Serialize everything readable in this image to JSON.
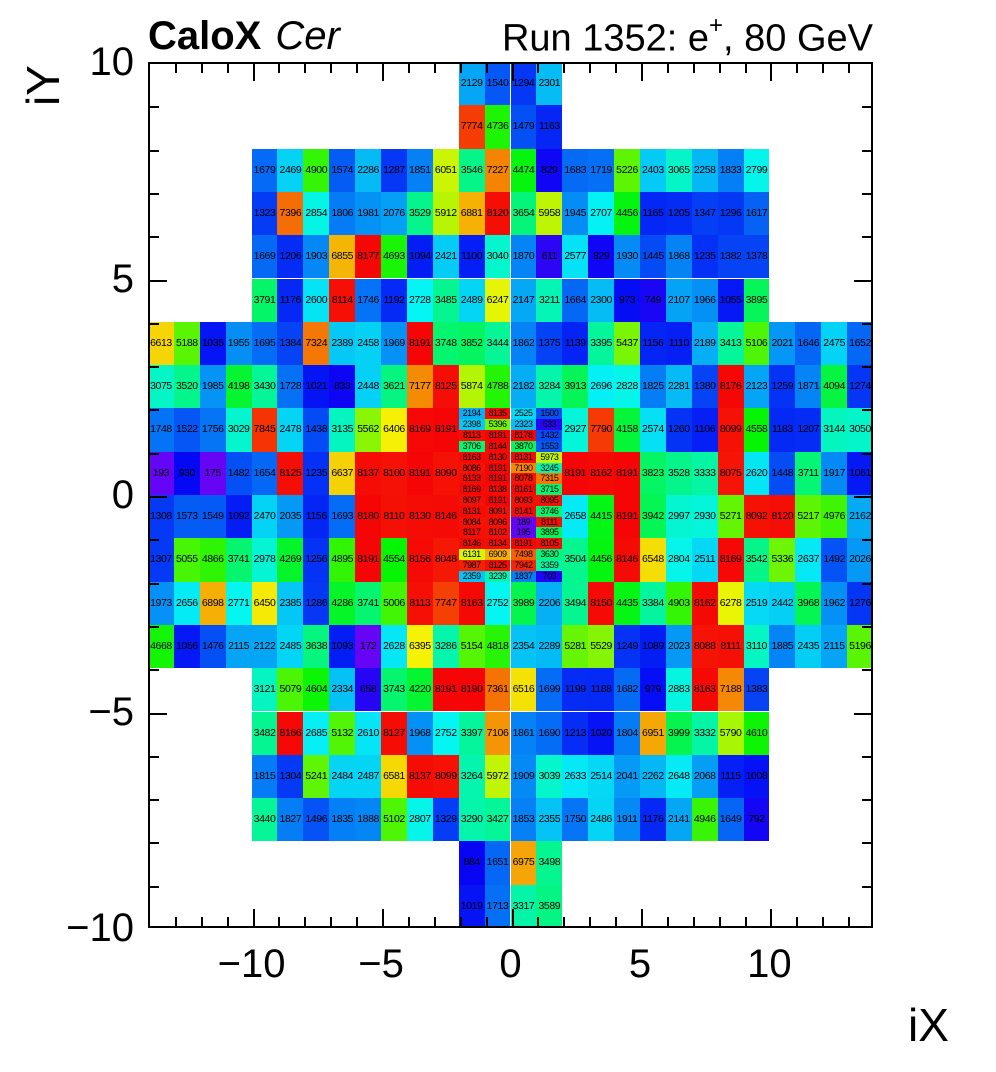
{
  "chart_data": {
    "type": "heatmap",
    "title_left_bold": "CaloX",
    "title_left_italic": "Cer",
    "title_right_prefix": "Run 1352: e",
    "title_right_sup": "+",
    "title_right_suffix": ", 80 GeV",
    "xlabel": "iX",
    "ylabel": "iY",
    "xlim": [
      -14,
      14
    ],
    "ylim": [
      -10,
      10
    ],
    "xticks": [
      -10,
      -5,
      0,
      5,
      10
    ],
    "yticks": [
      -10,
      -5,
      0,
      5,
      10
    ],
    "xtick_labels": [
      "−10",
      "−5",
      "0",
      "5",
      "10"
    ],
    "ytick_labels": [
      "−10",
      "−5",
      "0",
      "5",
      "10"
    ],
    "grid": false,
    "legend": "none",
    "zmin": 0,
    "zmax": 8191,
    "palette": {
      "style": "rainbow",
      "min_hue": 270,
      "max_hue": 0,
      "low": "#7700ff",
      "high": "#ff0000",
      "text": "#000000"
    },
    "rows": [
      {
        "iy_top": 10,
        "segments": [
          {
            "ix0": -2,
            "values": [
              2129,
              1540,
              1294,
              2301
            ]
          }
        ]
      },
      {
        "iy_top": 9,
        "segments": [
          {
            "ix0": -2,
            "values": [
              7774,
              4736,
              1479,
              1163
            ]
          }
        ]
      },
      {
        "iy_top": 8,
        "segments": [
          {
            "ix0": -10,
            "values": [
              1679,
              2469,
              4900,
              1574,
              2286,
              1287,
              1851,
              6051,
              3546,
              7227,
              4474,
              829,
              1683,
              1719,
              5226,
              2403,
              3065,
              2258,
              1833,
              2799
            ]
          }
        ]
      },
      {
        "iy_top": 7,
        "segments": [
          {
            "ix0": -10,
            "values": [
              1323,
              7396,
              2854,
              1806,
              1981,
              2076,
              3529,
              5912,
              6881,
              8120,
              3654,
              5958,
              1945,
              2707,
              4456,
              1165,
              1205,
              1347,
              1296,
              1617
            ]
          }
        ]
      },
      {
        "iy_top": 6,
        "segments": [
          {
            "ix0": -10,
            "values": [
              1669,
              1206,
              1903,
              6855,
              8177,
              4693,
              1094,
              2421,
              1100,
              3040,
              1870,
              611,
              2577,
              829,
              1930,
              1445,
              1868,
              1235,
              1382,
              1378
            ]
          }
        ]
      },
      {
        "iy_top": 5,
        "segments": [
          {
            "ix0": -10,
            "values": [
              3791,
              1176,
              2600,
              8114,
              1746,
              1192,
              2728,
              3485,
              2489,
              6247,
              2147,
              3211,
              1664,
              2300,
              973,
              749,
              2107,
              1966,
              1055,
              3895
            ]
          }
        ]
      },
      {
        "iy_top": 4,
        "segments": [
          {
            "ix0": -14,
            "values": [
              6613,
              5188,
              1035,
              1955,
              1695,
              1384,
              7324,
              2389,
              2458,
              1969,
              8191,
              3748,
              3852,
              3444,
              1862,
              1375,
              1139,
              3395,
              5437,
              1156,
              1110,
              2189,
              3413,
              5106,
              2021,
              1646,
              2475,
              1652
            ]
          }
        ]
      },
      {
        "iy_top": 3,
        "segments": [
          {
            "ix0": -14,
            "values": [
              3075,
              3520,
              1985,
              4198,
              3430,
              1728,
              1021,
              833,
              2448,
              3621,
              7177,
              8125,
              5874,
              4788,
              2182,
              3284,
              3913,
              2696,
              2828,
              1825,
              2281,
              1380,
              8176,
              2123,
              1259,
              1871,
              4094,
              1274
            ]
          }
        ]
      },
      {
        "iy_top": 2,
        "segments": [
          {
            "ix0": -14,
            "values": [
              1748,
              1522,
              1756,
              3029,
              7845,
              2478,
              1438,
              3135,
              5562,
              6406,
              8169,
              8191
            ]
          },
          {
            "ix0": 2,
            "values": [
              2927,
              7790,
              4158,
              2574,
              1260,
              1106,
              8099,
              4558,
              1183,
              1207,
              3144,
              3050
            ]
          }
        ]
      },
      {
        "iy_top": 1,
        "segments": [
          {
            "ix0": -14,
            "values": [
              193,
              930,
              175,
              1482,
              1654,
              8125,
              1235,
              6637,
              8137,
              8100,
              8191,
              8090
            ]
          },
          {
            "ix0": 2,
            "values": [
              8191,
              8162,
              8191,
              3823,
              3528,
              3333,
              8075,
              2620,
              1448,
              3711,
              1917,
              1061
            ]
          }
        ]
      },
      {
        "iy_top": 0,
        "segments": [
          {
            "ix0": -14,
            "values": [
              1308,
              1573,
              1549,
              1092,
              2470,
              2035,
              1156,
              1693,
              8180,
              8110,
              8130,
              8146
            ]
          },
          {
            "ix0": 2,
            "values": [
              2658,
              4415,
              8191,
              3942,
              2997,
              2930,
              5271,
              8092,
              8120,
              5217,
              4976,
              2162
            ]
          }
        ]
      },
      {
        "iy_top": -1,
        "segments": [
          {
            "ix0": -14,
            "values": [
              1307,
              5055,
              4866,
              3741,
              2978,
              4269,
              1256,
              4895,
              8191,
              4554,
              8156,
              8048
            ]
          },
          {
            "ix0": 2,
            "values": [
              3504,
              4456,
              8146,
              6548,
              2804,
              2511,
              8169,
              3542,
              5336,
              2637,
              1492,
              2026
            ]
          }
        ]
      },
      {
        "iy_top": -2,
        "segments": [
          {
            "ix0": -14,
            "values": [
              1973,
              2656,
              6898,
              2771,
              6450,
              2385,
              1286,
              4286,
              3741,
              5006,
              8113,
              7747,
              8163,
              2752,
              3989,
              2206,
              3494,
              8150,
              4435,
              3384,
              4903,
              8162,
              6278,
              2519,
              2442,
              3968,
              1962,
              1276
            ]
          }
        ]
      },
      {
        "iy_top": -3,
        "segments": [
          {
            "ix0": -14,
            "values": [
              4668,
              1056,
              1476,
              2115,
              2122,
              2485,
              3638,
              1093,
              172,
              2628,
              6395,
              3286,
              5154,
              4818,
              2354,
              2289,
              5281,
              5529,
              1249,
              1089,
              2023,
              8088,
              8111,
              3110,
              1885,
              2435,
              2115,
              5196
            ]
          }
        ]
      },
      {
        "iy_top": -4,
        "segments": [
          {
            "ix0": -10,
            "values": [
              3121,
              5079,
              4604,
              2334,
              658,
              3743,
              4220,
              8191,
              8190,
              7361,
              6516,
              1699,
              1199,
              1188,
              1682,
              979,
              2883,
              8163,
              7188,
              1383
            ]
          }
        ]
      },
      {
        "iy_top": -5,
        "segments": [
          {
            "ix0": -10,
            "values": [
              3482,
              8166,
              2685,
              5132,
              2610,
              8127,
              1968,
              2752,
              3397,
              7106,
              1861,
              1690,
              1213,
              1020,
              1804,
              6951,
              3999,
              3332,
              5790,
              4610
            ]
          }
        ]
      },
      {
        "iy_top": -6,
        "segments": [
          {
            "ix0": -10,
            "values": [
              1815,
              1304,
              5241,
              2484,
              2487,
              6581,
              8137,
              8099,
              3264,
              5972,
              1909,
              3039,
              2633,
              2514,
              2041,
              2262,
              2648,
              2068,
              1115,
              1008
            ]
          }
        ]
      },
      {
        "iy_top": -7,
        "segments": [
          {
            "ix0": -10,
            "values": [
              3440,
              1827,
              1496,
              1835,
              1888,
              5102,
              2807,
              1329,
              3290,
              3427,
              1853,
              2355,
              1750,
              2486,
              1911,
              1176,
              2141,
              4946,
              1649,
              792
            ]
          }
        ]
      },
      {
        "iy_top": -8,
        "segments": [
          {
            "ix0": -2,
            "values": [
              884,
              1651,
              6975,
              3498
            ]
          }
        ]
      },
      {
        "iy_top": -9,
        "segments": [
          {
            "ix0": -2,
            "values": [
              1019,
              1713,
              3317,
              3589
            ]
          }
        ]
      }
    ],
    "fine_block": {
      "ix0": -2,
      "iy_top": 2,
      "cell_w": 1,
      "cell_h": 0.25,
      "values": [
        [
          2194,
          8135,
          2525,
          1500
        ],
        [
          2398,
          5396,
          2323,
          633
        ],
        [
          8113,
          8191,
          8178,
          1432
        ],
        [
          3706,
          8144,
          3870,
          1553
        ],
        [
          8163,
          8130,
          8131,
          5973
        ],
        [
          8086,
          8191,
          7190,
          3245
        ],
        [
          8133,
          8191,
          8078,
          7315
        ],
        [
          8169,
          8138,
          8161,
          3715
        ],
        [
          8097,
          8191,
          8093,
          8095
        ],
        [
          8131,
          8091,
          8141,
          3746
        ],
        [
          8084,
          8096,
          189,
          8111
        ],
        [
          8117,
          8102,
          195,
          3895
        ],
        [
          8146,
          8134,
          8191,
          8105
        ],
        [
          6131,
          6909,
          7498,
          3630
        ],
        [
          7987,
          8125,
          7942,
          3359
        ],
        [
          2359,
          3239,
          1837,
          703
        ]
      ]
    }
  }
}
